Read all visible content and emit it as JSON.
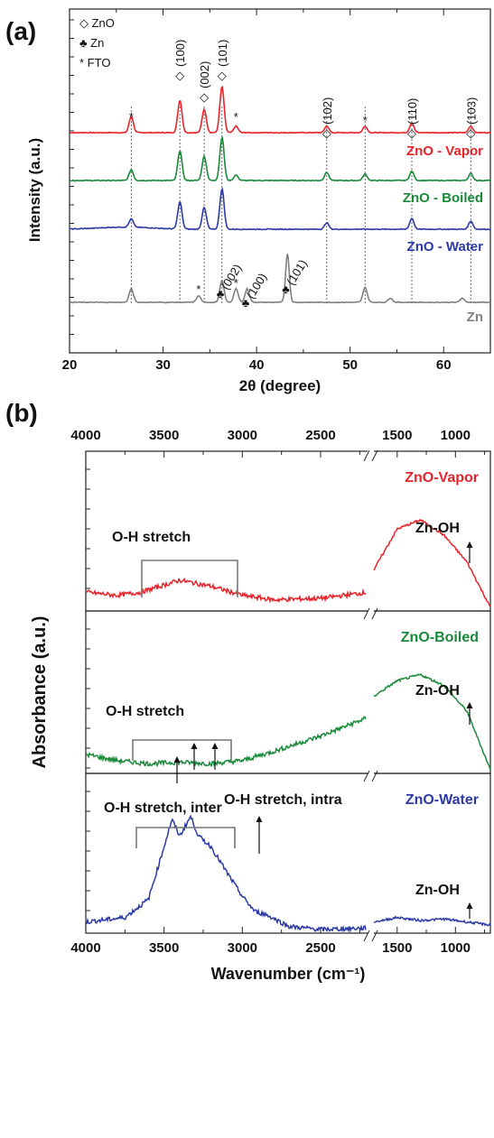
{
  "chart_data": [
    {
      "type": "line",
      "panel_label": "(a)",
      "xlabel": "2θ (degree)",
      "ylabel": "Intensity (a.u.)",
      "xlim": [
        20,
        65
      ],
      "x_ticks": [
        "20",
        "30",
        "40",
        "50",
        "60"
      ],
      "legend": [
        {
          "symbol": "◇",
          "text": "ZnO"
        },
        {
          "symbol": "♣",
          "text": "Zn"
        },
        {
          "symbol": "*",
          "text": "FTO"
        }
      ],
      "series": [
        {
          "name": "ZnO - Vapor",
          "color": "#e8232a",
          "peaks": [
            [
              26.6,
              0.3
            ],
            [
              31.8,
              0.6
            ],
            [
              34.4,
              0.43
            ],
            [
              36.3,
              0.85
            ],
            [
              37.8,
              0.12
            ],
            [
              47.5,
              0.12
            ],
            [
              51.6,
              0.12
            ],
            [
              56.6,
              0.18
            ],
            [
              62.9,
              0.12
            ]
          ]
        },
        {
          "name": "ZnO - Boiled",
          "color": "#1a8a3a",
          "peaks": [
            [
              26.6,
              0.2
            ],
            [
              31.8,
              0.55
            ],
            [
              34.4,
              0.45
            ],
            [
              36.3,
              0.8
            ],
            [
              37.8,
              0.1
            ],
            [
              47.5,
              0.15
            ],
            [
              51.6,
              0.12
            ],
            [
              56.6,
              0.17
            ],
            [
              62.9,
              0.13
            ]
          ]
        },
        {
          "name": "ZnO - Water",
          "color": "#2b3aa6",
          "peaks": [
            [
              26.6,
              0.15
            ],
            [
              31.8,
              0.5
            ],
            [
              34.4,
              0.4
            ],
            [
              36.3,
              0.75
            ],
            [
              47.5,
              0.12
            ],
            [
              56.6,
              0.2
            ],
            [
              62.9,
              0.15
            ]
          ]
        },
        {
          "name": "Zn",
          "color": "#808080",
          "peaks": [
            [
              26.6,
              0.25
            ],
            [
              33.8,
              0.12
            ],
            [
              36.3,
              0.4
            ],
            [
              37.8,
              0.25
            ],
            [
              39.0,
              0.25
            ],
            [
              43.3,
              0.9
            ],
            [
              51.6,
              0.28
            ],
            [
              54.3,
              0.08
            ],
            [
              62.0,
              0.08
            ]
          ]
        }
      ],
      "annotations": [
        {
          "text": "(100)",
          "x": 31.8,
          "type": "ZnO"
        },
        {
          "text": "(002)",
          "x": 34.4,
          "type": "ZnO"
        },
        {
          "text": "(101)",
          "x": 36.3,
          "type": "ZnO"
        },
        {
          "text": "(102)",
          "x": 47.5,
          "type": "ZnO"
        },
        {
          "text": "(110)",
          "x": 56.6,
          "type": "ZnO"
        },
        {
          "text": "(103)",
          "x": 62.9,
          "type": "ZnO"
        },
        {
          "text": "(002)",
          "x": 36.3,
          "type": "Zn"
        },
        {
          "text": "(100)",
          "x": 39.0,
          "type": "Zn"
        },
        {
          "text": "(101)",
          "x": 43.3,
          "type": "Zn"
        }
      ]
    },
    {
      "type": "line",
      "panel_label": "(b)",
      "xlabel": "Wavenumber (cm⁻¹)",
      "ylabel": "Absorbance (a.u.)",
      "x_ticks_left": [
        "4000",
        "3500",
        "3000",
        "2500"
      ],
      "x_ticks_right": [
        "1500",
        "1000"
      ],
      "series": [
        {
          "name": "ZnO-Vapor",
          "color": "#e8232a",
          "left": [
            [
              4000,
              0.1
            ],
            [
              3800,
              0.08
            ],
            [
              3650,
              0.1
            ],
            [
              3400,
              0.18
            ],
            [
              3200,
              0.14
            ],
            [
              3000,
              0.08
            ],
            [
              2800,
              0.05
            ],
            [
              2500,
              0.06
            ],
            [
              2200,
              0.1
            ]
          ],
          "right": [
            [
              1700,
              0.25
            ],
            [
              1500,
              0.52
            ],
            [
              1300,
              0.58
            ],
            [
              1100,
              0.48
            ],
            [
              900,
              0.3
            ],
            [
              700,
              0.0
            ]
          ]
        },
        {
          "name": "ZnO-Boiled",
          "color": "#1a8a3a",
          "left": [
            [
              4000,
              0.1
            ],
            [
              3800,
              0.06
            ],
            [
              3600,
              0.04
            ],
            [
              3400,
              0.05
            ],
            [
              3200,
              0.04
            ],
            [
              3000,
              0.06
            ],
            [
              2800,
              0.12
            ],
            [
              2500,
              0.22
            ],
            [
              2200,
              0.34
            ]
          ],
          "right": [
            [
              1700,
              0.48
            ],
            [
              1500,
              0.58
            ],
            [
              1300,
              0.62
            ],
            [
              1100,
              0.55
            ],
            [
              900,
              0.38
            ],
            [
              700,
              0.0
            ]
          ]
        },
        {
          "name": "ZnO-Water",
          "color": "#2b3aa6",
          "left": [
            [
              4000,
              0.05
            ],
            [
              3750,
              0.08
            ],
            [
              3600,
              0.2
            ],
            [
              3500,
              0.55
            ],
            [
              3450,
              0.73
            ],
            [
              3400,
              0.62
            ],
            [
              3330,
              0.75
            ],
            [
              3280,
              0.62
            ],
            [
              3200,
              0.55
            ],
            [
              3100,
              0.38
            ],
            [
              3000,
              0.22
            ],
            [
              2920,
              0.12
            ],
            [
              2850,
              0.1
            ],
            [
              2700,
              0.02
            ],
            [
              2500,
              0.0
            ],
            [
              2200,
              0.01
            ]
          ],
          "right": [
            [
              1700,
              0.05
            ],
            [
              1500,
              0.08
            ],
            [
              1300,
              0.06
            ],
            [
              1100,
              0.07
            ],
            [
              900,
              0.05
            ],
            [
              700,
              0.03
            ]
          ]
        }
      ],
      "annotations": [
        {
          "text": "O-H stretch",
          "panel": "ZnO-Vapor"
        },
        {
          "text": "Zn-OH",
          "panel": "ZnO-Vapor"
        },
        {
          "text": "O-H stretch",
          "panel": "ZnO-Boiled"
        },
        {
          "text": "Zn-OH",
          "panel": "ZnO-Boiled"
        },
        {
          "text": "O-H stretch, inter",
          "panel": "ZnO-Water"
        },
        {
          "text": "O-H stretch, intra",
          "panel": "ZnO-Water"
        },
        {
          "text": "Zn-OH",
          "panel": "ZnO-Water"
        }
      ]
    }
  ]
}
